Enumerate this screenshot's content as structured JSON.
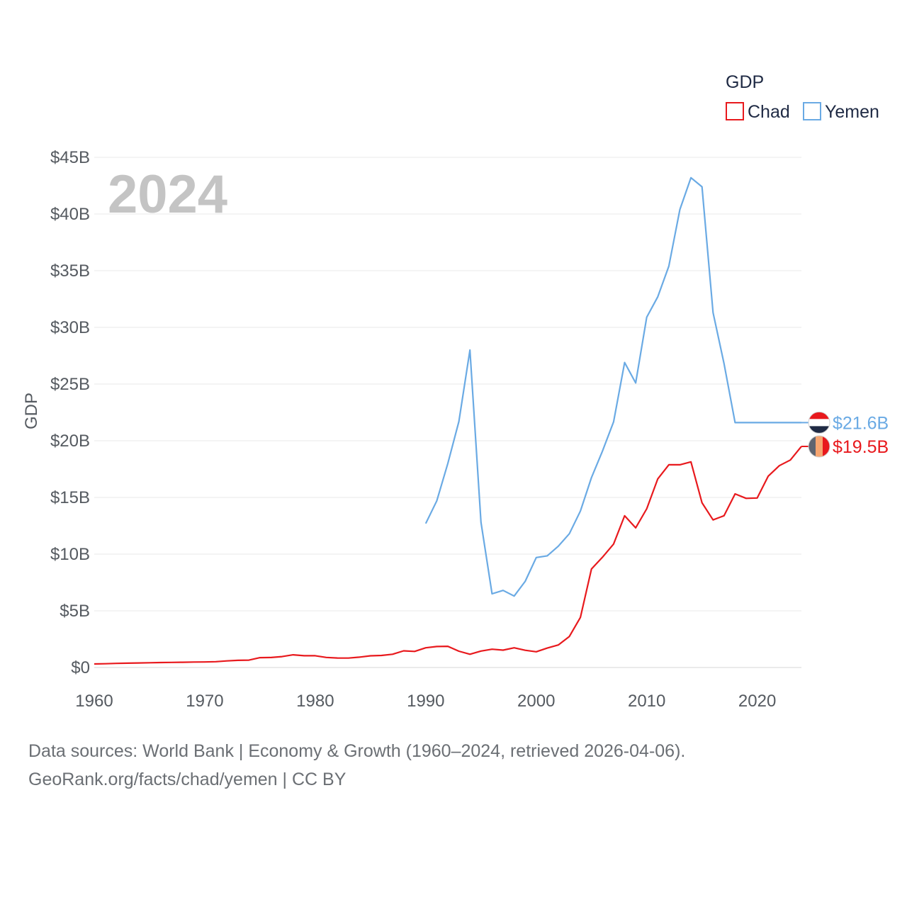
{
  "chart_data": {
    "type": "line",
    "title": "",
    "year_highlight": "2024",
    "ylabel": "GDP",
    "xlabel": "",
    "xlim": [
      1960,
      2024
    ],
    "ylim": [
      0,
      45
    ],
    "x_ticks": [
      {
        "value": 1960,
        "label": "1960"
      },
      {
        "value": 1970,
        "label": "1970"
      },
      {
        "value": 1980,
        "label": "1980"
      },
      {
        "value": 1990,
        "label": "1990"
      },
      {
        "value": 2000,
        "label": "2000"
      },
      {
        "value": 2010,
        "label": "2010"
      },
      {
        "value": 2020,
        "label": "2020"
      }
    ],
    "y_ticks": [
      {
        "value": 0,
        "label": "$0"
      },
      {
        "value": 5,
        "label": "$5B"
      },
      {
        "value": 10,
        "label": "$10B"
      },
      {
        "value": 15,
        "label": "$15B"
      },
      {
        "value": 20,
        "label": "$20B"
      },
      {
        "value": 25,
        "label": "$25B"
      },
      {
        "value": 30,
        "label": "$30B"
      },
      {
        "value": 35,
        "label": "$35B"
      },
      {
        "value": 40,
        "label": "$40B"
      },
      {
        "value": 45,
        "label": "$45B"
      }
    ],
    "legend": {
      "title": "GDP",
      "position": "top-right"
    },
    "series": [
      {
        "name": "Chad",
        "color": "#e8191d",
        "end_label": "$19.5B",
        "flag_colors": [
          "#5e6470",
          "#f6a570",
          "#e8191d"
        ],
        "x": [
          1960,
          1961,
          1962,
          1963,
          1964,
          1965,
          1966,
          1967,
          1968,
          1969,
          1970,
          1971,
          1972,
          1973,
          1974,
          1975,
          1976,
          1977,
          1978,
          1979,
          1980,
          1981,
          1982,
          1983,
          1984,
          1985,
          1986,
          1987,
          1988,
          1989,
          1990,
          1991,
          1992,
          1993,
          1994,
          1995,
          1996,
          1997,
          1998,
          1999,
          2000,
          2001,
          2002,
          2003,
          2004,
          2005,
          2006,
          2007,
          2008,
          2009,
          2010,
          2011,
          2012,
          2013,
          2014,
          2015,
          2016,
          2017,
          2018,
          2019,
          2020,
          2021,
          2022,
          2023,
          2024
        ],
        "values": [
          0.31,
          0.33,
          0.36,
          0.38,
          0.4,
          0.42,
          0.44,
          0.45,
          0.46,
          0.48,
          0.49,
          0.51,
          0.58,
          0.63,
          0.65,
          0.87,
          0.88,
          0.96,
          1.12,
          1.04,
          1.04,
          0.89,
          0.84,
          0.83,
          0.91,
          1.03,
          1.06,
          1.17,
          1.47,
          1.42,
          1.74,
          1.85,
          1.87,
          1.44,
          1.17,
          1.45,
          1.61,
          1.53,
          1.74,
          1.52,
          1.39,
          1.71,
          1.99,
          2.74,
          4.42,
          8.69,
          9.73,
          10.89,
          13.38,
          12.32,
          14.0,
          16.64,
          17.88,
          17.88,
          18.14,
          14.53,
          13.02,
          13.39,
          15.31,
          14.92,
          14.95,
          16.88,
          17.8,
          18.3,
          19.5
        ]
      },
      {
        "name": "Yemen",
        "color": "#6aaae4",
        "end_label": "$21.6B",
        "flag_colors": [
          "#e8191d",
          "#ffffff",
          "#1f2a44"
        ],
        "x": [
          1990,
          1991,
          1992,
          1993,
          1994,
          1995,
          1996,
          1997,
          1998,
          1999,
          2000,
          2001,
          2002,
          2003,
          2004,
          2005,
          2006,
          2007,
          2008,
          2009,
          2010,
          2011,
          2012,
          2013,
          2014,
          2015,
          2016,
          2017,
          2018,
          2019,
          2020,
          2021,
          2022,
          2023,
          2024
        ],
        "values": [
          12.7,
          14.7,
          18.0,
          21.7,
          28.0,
          12.8,
          6.5,
          6.8,
          6.3,
          7.6,
          9.7,
          9.85,
          10.7,
          11.8,
          13.8,
          16.75,
          19.1,
          21.66,
          26.9,
          25.1,
          30.9,
          32.7,
          35.4,
          40.4,
          43.2,
          42.4,
          31.3,
          26.8,
          21.6,
          21.6,
          21.6,
          21.6,
          21.6,
          21.6,
          21.6
        ]
      }
    ]
  },
  "footer": {
    "line1": "Data sources: World Bank | Economy & Growth (1960–2024, retrieved 2026-04-06).",
    "line2": "GeoRank.org/facts/chad/yemen | CC BY"
  }
}
